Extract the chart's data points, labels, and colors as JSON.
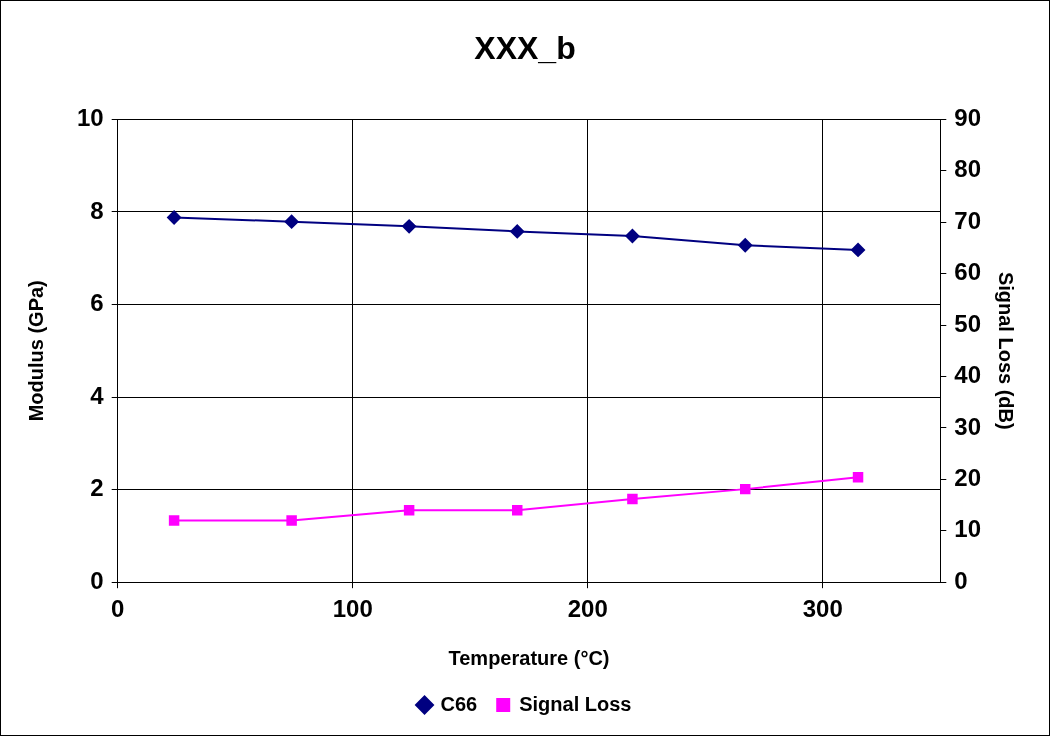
{
  "chart_data": {
    "type": "line",
    "title": "XXX_b",
    "xlabel": "Temperature (°C)",
    "ylabel": "Modulus (GPa)",
    "y2label": "Signal Loss (dB)",
    "x": [
      24,
      74,
      124,
      170,
      219,
      267,
      315
    ],
    "series": [
      {
        "name": "C66",
        "color": "#000080",
        "marker": "diamond",
        "values": [
          7.88,
          7.79,
          7.69,
          7.58,
          7.48,
          7.28,
          7.18
        ]
      },
      {
        "name": "Signal Loss",
        "color": "#ff00ff",
        "marker": "square",
        "axis": "y2",
        "values": [
          12,
          12,
          14,
          14,
          16.2,
          18.1,
          20.4
        ]
      }
    ],
    "xlim": [
      0,
      350
    ],
    "xticks": [
      0,
      100,
      200,
      300
    ],
    "ylim": [
      0,
      10
    ],
    "yticks": [
      0,
      2,
      4,
      6,
      8,
      10
    ],
    "y2lim": [
      0,
      90
    ],
    "y2ticks": [
      0,
      10,
      20,
      30,
      40,
      50,
      60,
      70,
      80,
      90
    ],
    "grid": true,
    "legend": "bottom"
  }
}
